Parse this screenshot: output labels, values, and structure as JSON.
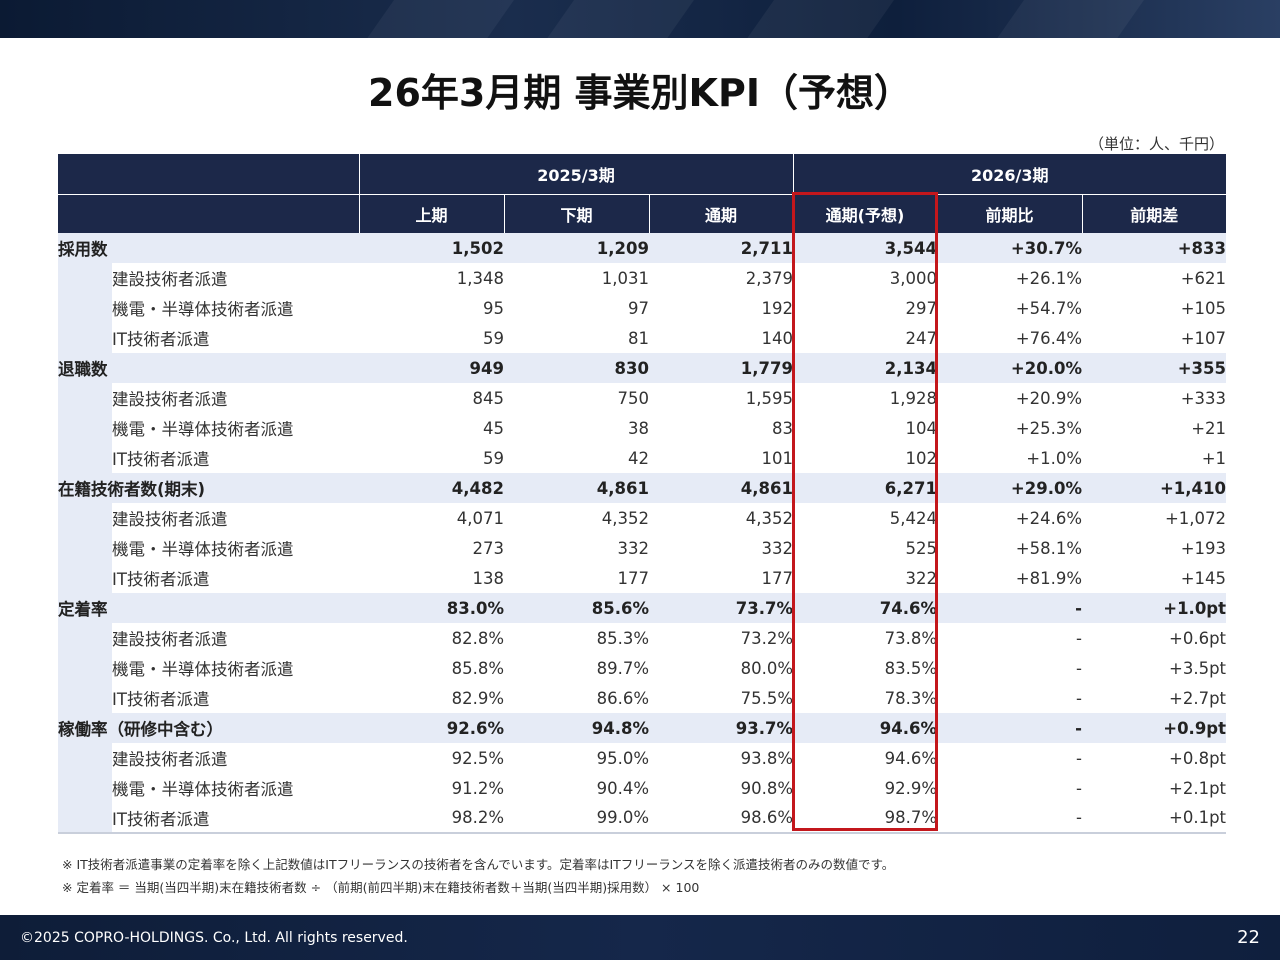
{
  "title": "26年3月期 事業別KPI（予想）",
  "unit": "（単位：人、千円）",
  "header": {
    "period_2025": "2025/3期",
    "period_2026": "2026/3期",
    "columns": [
      "上期",
      "下期",
      "通期",
      "通期(予想)",
      "前期比",
      "前期差"
    ]
  },
  "sections": [
    {
      "label": "採用数",
      "values": [
        "1,502",
        "1,209",
        "2,711",
        "3,544",
        "+30.7%",
        "+833"
      ],
      "rows": [
        {
          "label": "建設技術者派遣",
          "values": [
            "1,348",
            "1,031",
            "2,379",
            "3,000",
            "+26.1%",
            "+621"
          ]
        },
        {
          "label": "機電・半導体技術者派遣",
          "values": [
            "95",
            "97",
            "192",
            "297",
            "+54.7%",
            "+105"
          ]
        },
        {
          "label": "IT技術者派遣",
          "values": [
            "59",
            "81",
            "140",
            "247",
            "+76.4%",
            "+107"
          ]
        }
      ]
    },
    {
      "label": "退職数",
      "values": [
        "949",
        "830",
        "1,779",
        "2,134",
        "+20.0%",
        "+355"
      ],
      "rows": [
        {
          "label": "建設技術者派遣",
          "values": [
            "845",
            "750",
            "1,595",
            "1,928",
            "+20.9%",
            "+333"
          ]
        },
        {
          "label": "機電・半導体技術者派遣",
          "values": [
            "45",
            "38",
            "83",
            "104",
            "+25.3%",
            "+21"
          ]
        },
        {
          "label": "IT技術者派遣",
          "values": [
            "59",
            "42",
            "101",
            "102",
            "+1.0%",
            "+1"
          ]
        }
      ]
    },
    {
      "label": "在籍技術者数(期末)",
      "values": [
        "4,482",
        "4,861",
        "4,861",
        "6,271",
        "+29.0%",
        "+1,410"
      ],
      "rows": [
        {
          "label": "建設技術者派遣",
          "values": [
            "4,071",
            "4,352",
            "4,352",
            "5,424",
            "+24.6%",
            "+1,072"
          ]
        },
        {
          "label": "機電・半導体技術者派遣",
          "values": [
            "273",
            "332",
            "332",
            "525",
            "+58.1%",
            "+193"
          ]
        },
        {
          "label": "IT技術者派遣",
          "values": [
            "138",
            "177",
            "177",
            "322",
            "+81.9%",
            "+145"
          ]
        }
      ]
    },
    {
      "label": "定着率",
      "values": [
        "83.0%",
        "85.6%",
        "73.7%",
        "74.6%",
        "-",
        "+1.0pt"
      ],
      "rows": [
        {
          "label": "建設技術者派遣",
          "values": [
            "82.8%",
            "85.3%",
            "73.2%",
            "73.8%",
            "-",
            "+0.6pt"
          ]
        },
        {
          "label": "機電・半導体技術者派遣",
          "values": [
            "85.8%",
            "89.7%",
            "80.0%",
            "83.5%",
            "-",
            "+3.5pt"
          ]
        },
        {
          "label": "IT技術者派遣",
          "values": [
            "82.9%",
            "86.6%",
            "75.5%",
            "78.3%",
            "-",
            "+2.7pt"
          ]
        }
      ]
    },
    {
      "label": "稼働率（研修中含む）",
      "values": [
        "92.6%",
        "94.8%",
        "93.7%",
        "94.6%",
        "-",
        "+0.9pt"
      ],
      "rows": [
        {
          "label": "建設技術者派遣",
          "values": [
            "92.5%",
            "95.0%",
            "93.8%",
            "94.6%",
            "-",
            "+0.8pt"
          ]
        },
        {
          "label": "機電・半導体技術者派遣",
          "values": [
            "91.2%",
            "90.4%",
            "90.8%",
            "92.9%",
            "-",
            "+2.1pt"
          ]
        },
        {
          "label": "IT技術者派遣",
          "values": [
            "98.2%",
            "99.0%",
            "98.6%",
            "98.7%",
            "-",
            "+0.1pt"
          ]
        }
      ]
    }
  ],
  "notes": [
    "※ IT技術者派遣事業の定着率を除く上記数値はITフリーランスの技術者を含んでいます。定着率はITフリーランスを除く派遣技術者のみの数値です。",
    "※ 定着率 ＝ 当期(当四半期)末在籍技術者数 ÷ （前期(前四半期)末在籍技術者数＋当期(当四半期)採用数） × 100"
  ],
  "footer": {
    "copyright": "©2025 COPRO-HOLDINGS. Co., Ltd. All rights reserved.",
    "page_number": "22"
  }
}
